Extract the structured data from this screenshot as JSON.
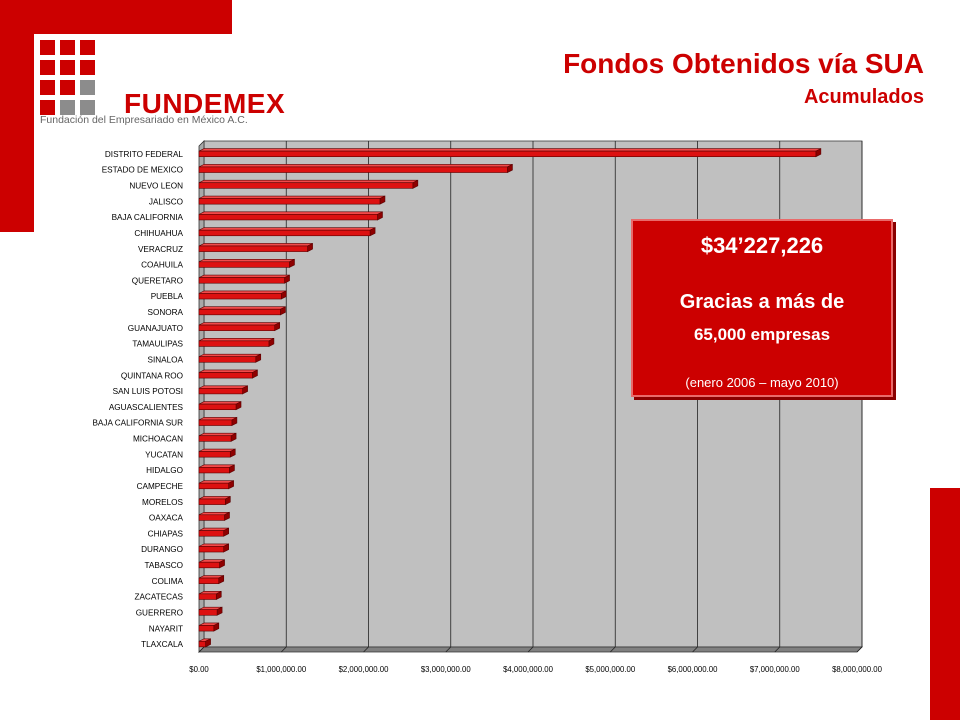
{
  "logo": {
    "name": "FUNDEMEX",
    "tagline": "Fundación del Empresariado en México A.C.",
    "colors": [
      "#cc0000",
      "#cc0000",
      "#cc0000",
      "#cc0000",
      "#cc0000",
      "#cc0000",
      "#cc0000",
      "#cc0000",
      "#8c8c8c",
      "#cc0000",
      "#8c8c8c",
      "#8c8c8c"
    ]
  },
  "header": {
    "title": "Fondos Obtenidos vía SUA",
    "subtitle": "Acumulados"
  },
  "callout": {
    "amount": "$34’227,226",
    "thanks": "Gracias a más de",
    "companies": "65,000 empresas",
    "period": "(enero 2006 – mayo 2010)"
  },
  "colors": {
    "brand_red": "#cc0000",
    "bar": "#dd1111",
    "plot_background": "#c0c0c0",
    "floor": "#808080"
  },
  "chart_data": {
    "type": "bar",
    "orientation": "horizontal",
    "style": "3d",
    "categories": [
      "DISTRITO FEDERAL",
      "ESTADO DE MEXICO",
      "NUEVO LEON",
      "JALISCO",
      "BAJA CALIFORNIA",
      "CHIHUAHUA",
      "VERACRUZ",
      "COAHUILA",
      "QUERETARO",
      "PUEBLA",
      "SONORA",
      "GUANAJUATO",
      "TAMAULIPAS",
      "SINALOA",
      "QUINTANA ROO",
      "SAN LUIS POTOSI",
      "AGUASCALIENTES",
      "BAJA CALIFORNIA SUR",
      "MICHOACAN",
      "YUCATAN",
      "HIDALGO",
      "CAMPECHE",
      "MORELOS",
      "OAXACA",
      "CHIAPAS",
      "DURANGO",
      "TABASCO",
      "COLIMA",
      "ZACATECAS",
      "GUERRERO",
      "NAYARIT",
      "TLAXCALA"
    ],
    "values": [
      7500000,
      3750000,
      2600000,
      2200000,
      2170000,
      2080000,
      1320000,
      1100000,
      1040000,
      1000000,
      990000,
      920000,
      850000,
      690000,
      650000,
      530000,
      450000,
      400000,
      390000,
      380000,
      370000,
      360000,
      320000,
      310000,
      300000,
      300000,
      250000,
      240000,
      210000,
      220000,
      180000,
      80000
    ],
    "xlim": [
      0,
      8000000
    ],
    "ticks": [
      0,
      1000000,
      2000000,
      3000000,
      4000000,
      5000000,
      6000000,
      7000000,
      8000000
    ],
    "tick_labels": [
      "$0.00",
      "$1,000,000.00",
      "$2,000,000.00",
      "$3,000,000.00",
      "$4,000,000.00",
      "$5,000,000.00",
      "$6,000,000.00",
      "$7,000,000.00",
      "$8,000,000.00"
    ],
    "grid": true,
    "legend": "none"
  }
}
